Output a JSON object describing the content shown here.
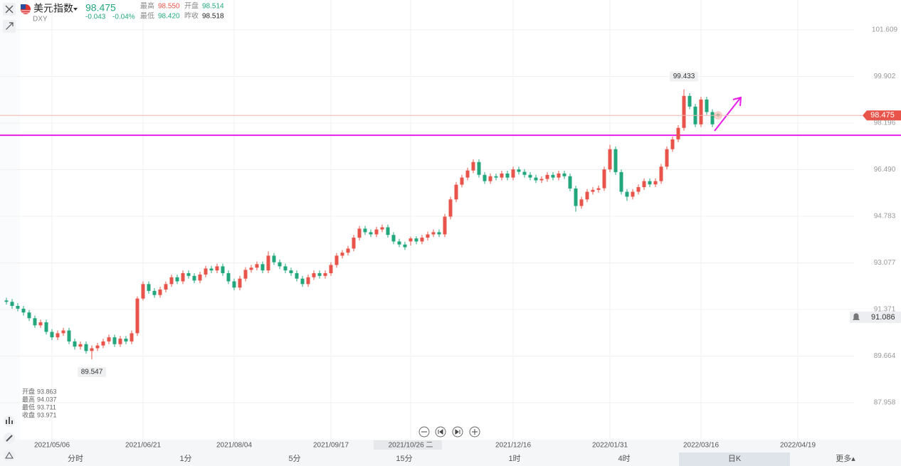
{
  "header": {
    "name": "美元指数",
    "code": "DXY",
    "price": "98.475",
    "change": "-0.043",
    "change_pct": "-0.04%",
    "stats": [
      {
        "label": "最高",
        "value": "98.550"
      },
      {
        "label": "开盘",
        "value": "98.514"
      },
      {
        "label": "最低",
        "value": "98.420"
      },
      {
        "label": "昨收",
        "value": "98.518"
      }
    ]
  },
  "info_labels": [
    "开盘",
    "最高",
    "最低",
    "收盘"
  ],
  "timeframes": [
    "分时",
    "1分",
    "5分",
    "15分",
    "1时",
    "4时",
    "日K",
    "更多▴"
  ],
  "chart_data": {
    "type": "candlestick",
    "up_color": "#e8544a",
    "down_color": "#22a77d",
    "categories": [
      null,
      null,
      null,
      null,
      null,
      null,
      null,
      null,
      "2021/05/06",
      null,
      null,
      null,
      null,
      null,
      null,
      null,
      null,
      null,
      null,
      null,
      null,
      null,
      null,
      null,
      "2021/06/21",
      null,
      null,
      null,
      null,
      null,
      null,
      null,
      null,
      null,
      null,
      null,
      null,
      null,
      null,
      null,
      "2021/08/04",
      null,
      null,
      null,
      null,
      null,
      null,
      null,
      null,
      null,
      null,
      null,
      null,
      null,
      null,
      null,
      null,
      "2021/09/17",
      null,
      null,
      null,
      null,
      null,
      null,
      null,
      null,
      null,
      null,
      null,
      null,
      null,
      "2021/10/26 二",
      null,
      null,
      null,
      null,
      null,
      null,
      null,
      null,
      null,
      null,
      null,
      null,
      null,
      null,
      null,
      null,
      null,
      "2021/12/16",
      null,
      null,
      null,
      null,
      null,
      null,
      null,
      null,
      null,
      null,
      null,
      null,
      null,
      null,
      null,
      null,
      "2022/01/31",
      null,
      null,
      null,
      null,
      null,
      null,
      null,
      null,
      null,
      null,
      null,
      null,
      null,
      null,
      null,
      "2022/03/16",
      null,
      null,
      null,
      null,
      null,
      null,
      null,
      null,
      null,
      null,
      null,
      null,
      null,
      null,
      null,
      null,
      "2022/04/19"
    ],
    "values": [
      [
        91.7,
        91.8,
        91.55,
        91.65
      ],
      [
        91.65,
        91.75,
        91.4,
        91.5
      ],
      [
        91.5,
        91.6,
        91.3,
        91.4
      ],
      [
        91.4,
        91.5,
        91.15,
        91.26
      ],
      [
        91.26,
        91.35,
        90.95,
        91.05
      ],
      [
        91.05,
        91.15,
        90.7,
        90.79
      ],
      [
        90.79,
        91.0,
        90.7,
        90.9
      ],
      [
        90.9,
        91.0,
        90.45,
        90.55
      ],
      [
        90.55,
        90.65,
        90.25,
        90.35
      ],
      [
        90.35,
        90.6,
        90.25,
        90.5
      ],
      [
        90.5,
        90.7,
        90.4,
        90.6
      ],
      [
        90.6,
        90.7,
        90.1,
        90.2
      ],
      [
        90.2,
        90.3,
        89.9,
        90.01
      ],
      [
        90.01,
        90.2,
        89.9,
        90.1
      ],
      [
        90.1,
        90.2,
        89.75,
        89.85
      ],
      [
        89.85,
        90.05,
        89.547,
        89.95
      ],
      [
        89.95,
        90.15,
        89.85,
        90.05
      ],
      [
        90.05,
        90.3,
        89.95,
        90.2
      ],
      [
        90.2,
        90.45,
        90.1,
        90.35
      ],
      [
        90.35,
        90.45,
        90.0,
        90.1
      ],
      [
        90.1,
        90.4,
        90.0,
        90.3
      ],
      [
        90.3,
        90.4,
        90.1,
        90.2
      ],
      [
        90.2,
        90.6,
        90.1,
        90.5
      ],
      [
        90.5,
        91.85,
        90.4,
        91.77
      ],
      [
        91.77,
        92.4,
        91.7,
        92.3
      ],
      [
        92.3,
        92.4,
        91.95,
        92.05
      ],
      [
        92.05,
        92.15,
        91.8,
        91.9
      ],
      [
        91.9,
        92.2,
        91.8,
        92.1
      ],
      [
        92.1,
        92.4,
        92.0,
        92.3
      ],
      [
        92.3,
        92.65,
        92.2,
        92.55
      ],
      [
        92.55,
        92.65,
        92.3,
        92.4
      ],
      [
        92.4,
        92.8,
        92.3,
        92.7
      ],
      [
        92.7,
        92.8,
        92.5,
        92.6
      ],
      [
        92.6,
        92.7,
        92.33,
        92.43
      ],
      [
        92.43,
        92.75,
        92.33,
        92.65
      ],
      [
        92.65,
        92.97,
        92.55,
        92.87
      ],
      [
        92.87,
        92.97,
        92.7,
        92.8
      ],
      [
        92.8,
        93.05,
        92.7,
        92.95
      ],
      [
        92.95,
        93.05,
        92.6,
        92.7
      ],
      [
        92.7,
        92.8,
        92.3,
        92.4
      ],
      [
        92.4,
        92.5,
        92.07,
        92.17
      ],
      [
        92.17,
        92.6,
        92.07,
        92.5
      ],
      [
        92.5,
        92.92,
        92.4,
        92.82
      ],
      [
        92.82,
        93.0,
        92.72,
        92.9
      ],
      [
        92.9,
        93.13,
        92.8,
        93.03
      ],
      [
        93.03,
        93.13,
        92.7,
        92.8
      ],
      [
        92.8,
        93.5,
        92.7,
        93.34
      ],
      [
        93.34,
        93.44,
        93.0,
        93.1
      ],
      [
        93.1,
        93.2,
        92.85,
        92.95
      ],
      [
        92.95,
        93.05,
        92.7,
        92.8
      ],
      [
        92.8,
        92.9,
        92.6,
        92.7
      ],
      [
        92.7,
        92.8,
        92.4,
        92.5
      ],
      [
        92.5,
        92.6,
        92.2,
        92.3
      ],
      [
        92.3,
        92.65,
        92.2,
        92.55
      ],
      [
        92.55,
        92.8,
        92.45,
        92.7
      ],
      [
        92.7,
        92.8,
        92.5,
        92.6
      ],
      [
        92.6,
        92.8,
        92.5,
        92.7
      ],
      [
        92.7,
        93.1,
        92.6,
        93.0
      ],
      [
        93.0,
        93.44,
        92.9,
        93.34
      ],
      [
        93.34,
        93.55,
        93.24,
        93.45
      ],
      [
        93.45,
        93.7,
        93.35,
        93.6
      ],
      [
        93.6,
        94.1,
        93.5,
        94.0
      ],
      [
        94.0,
        94.43,
        93.9,
        94.33
      ],
      [
        94.33,
        94.43,
        94.1,
        94.2
      ],
      [
        94.2,
        94.3,
        94.02,
        94.12
      ],
      [
        94.12,
        94.4,
        94.02,
        94.3
      ],
      [
        94.3,
        94.48,
        94.2,
        94.38
      ],
      [
        94.38,
        94.48,
        94.0,
        94.1
      ],
      [
        94.1,
        94.2,
        93.76,
        93.86
      ],
      [
        93.86,
        93.96,
        93.65,
        93.75
      ],
      [
        93.75,
        93.85,
        93.55,
        93.65
      ],
      [
        93.863,
        94.037,
        93.711,
        93.971
      ],
      [
        93.971,
        94.05,
        93.76,
        93.86
      ],
      [
        93.86,
        94.1,
        93.76,
        94.0
      ],
      [
        94.0,
        94.22,
        93.9,
        94.12
      ],
      [
        94.12,
        94.3,
        94.02,
        94.2
      ],
      [
        94.2,
        94.3,
        94.02,
        94.12
      ],
      [
        94.12,
        94.87,
        94.02,
        94.77
      ],
      [
        94.77,
        95.5,
        94.67,
        95.4
      ],
      [
        95.4,
        96.04,
        95.3,
        95.94
      ],
      [
        95.94,
        96.3,
        95.84,
        96.2
      ],
      [
        96.2,
        96.56,
        96.1,
        96.46
      ],
      [
        96.46,
        96.87,
        96.36,
        96.77
      ],
      [
        96.77,
        96.87,
        96.2,
        96.3
      ],
      [
        96.3,
        96.4,
        95.97,
        96.07
      ],
      [
        96.07,
        96.35,
        95.97,
        96.25
      ],
      [
        96.25,
        96.35,
        96.1,
        96.2
      ],
      [
        96.2,
        96.45,
        96.1,
        96.35
      ],
      [
        96.35,
        96.45,
        96.1,
        96.2
      ],
      [
        96.2,
        96.6,
        96.1,
        96.5
      ],
      [
        96.5,
        96.6,
        96.31,
        96.41
      ],
      [
        96.41,
        96.51,
        96.2,
        96.3
      ],
      [
        96.3,
        96.4,
        96.1,
        96.2
      ],
      [
        96.2,
        96.3,
        96.0,
        96.1
      ],
      [
        96.1,
        96.25,
        96.0,
        96.15
      ],
      [
        96.15,
        96.4,
        96.05,
        96.3
      ],
      [
        96.3,
        96.4,
        96.1,
        96.2
      ],
      [
        96.2,
        96.45,
        96.1,
        96.35
      ],
      [
        96.35,
        96.45,
        96.15,
        96.25
      ],
      [
        96.25,
        96.35,
        95.7,
        95.8
      ],
      [
        95.8,
        95.9,
        94.95,
        95.16
      ],
      [
        95.16,
        95.5,
        95.06,
        95.4
      ],
      [
        95.4,
        95.78,
        95.3,
        95.68
      ],
      [
        95.68,
        95.85,
        95.58,
        95.75
      ],
      [
        95.75,
        95.91,
        95.65,
        95.81
      ],
      [
        95.81,
        96.6,
        95.71,
        96.5
      ],
      [
        96.5,
        97.4,
        96.4,
        97.24
      ],
      [
        97.24,
        97.34,
        96.3,
        96.4
      ],
      [
        96.4,
        96.5,
        95.58,
        95.68
      ],
      [
        95.68,
        95.78,
        95.35,
        95.5
      ],
      [
        95.5,
        95.78,
        95.4,
        95.68
      ],
      [
        95.68,
        95.95,
        95.58,
        95.85
      ],
      [
        95.85,
        96.17,
        95.75,
        96.07
      ],
      [
        96.07,
        96.17,
        95.85,
        95.95
      ],
      [
        95.95,
        96.17,
        95.85,
        96.07
      ],
      [
        96.07,
        96.7,
        95.97,
        96.6
      ],
      [
        96.6,
        97.34,
        96.5,
        97.24
      ],
      [
        97.24,
        97.7,
        97.14,
        97.6
      ],
      [
        97.6,
        98.12,
        97.5,
        98.02
      ],
      [
        98.02,
        99.433,
        97.92,
        99.19
      ],
      [
        99.19,
        99.29,
        98.7,
        98.8
      ],
      [
        98.8,
        98.9,
        98.05,
        98.15
      ],
      [
        98.15,
        99.16,
        98.05,
        99.06
      ],
      [
        99.06,
        99.16,
        98.5,
        98.6
      ],
      [
        98.6,
        98.7,
        98.05,
        98.15
      ],
      [
        98.514,
        98.55,
        98.42,
        98.475
      ],
      null,
      null,
      null,
      null,
      null,
      null,
      null,
      null,
      null,
      null,
      null,
      null,
      null,
      null
    ],
    "ylim": [
      86.55,
      102.13
    ],
    "yticks": [
      87.958,
      89.664,
      91.371,
      93.077,
      94.783,
      {
        "value": 96.49,
        "label": "96.490"
      },
      98.196,
      99.902,
      101.609
    ],
    "alert_price": 91.086,
    "drawn_line": {
      "value": 97.75,
      "color": "#e61ee6"
    }
  }
}
